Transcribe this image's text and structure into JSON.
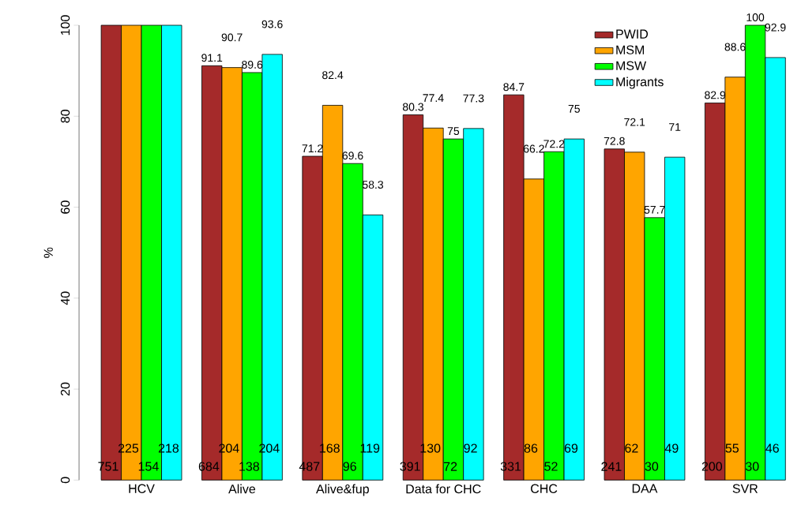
{
  "chart_data": {
    "type": "bar",
    "ylabel": "%",
    "categories": [
      "HCV",
      "Alive",
      "Alive&fup",
      "Data for CHC",
      "CHC",
      "DAA",
      "SVR"
    ],
    "series": [
      {
        "name": "PWID",
        "color": "#a52a2a",
        "values": [
          100,
          91.1,
          71.2,
          80.3,
          84.7,
          72.8,
          82.9
        ],
        "value_labels": [
          null,
          "91.1",
          "71.2",
          "80.3",
          "84.7",
          "72.8",
          "82.9"
        ]
      },
      {
        "name": "MSM",
        "color": "#ffa500",
        "values": [
          100,
          90.7,
          82.4,
          77.4,
          66.2,
          72.1,
          88.6
        ],
        "value_labels": [
          null,
          "90.7",
          "82.4",
          "77.4",
          "66.2",
          "72.1",
          "88.6"
        ]
      },
      {
        "name": "MSW",
        "color": "#00ff00",
        "values": [
          100,
          89.6,
          69.6,
          75,
          72.2,
          57.7,
          100
        ],
        "value_labels": [
          null,
          "89.6",
          "69.6",
          "75",
          "72.2",
          "57.7",
          "100"
        ]
      },
      {
        "name": "Migrants",
        "color": "#00ffff",
        "values": [
          100,
          93.6,
          58.3,
          77.3,
          75,
          71,
          92.9
        ],
        "value_labels": [
          null,
          "93.6",
          "58.3",
          "77.3",
          "75",
          "71",
          "92.9"
        ]
      }
    ],
    "ylim": [
      0,
      100
    ],
    "yticks": [
      0,
      20,
      40,
      60,
      80,
      100
    ],
    "legend": "top right",
    "annotations": [
      {
        "text": "751",
        "x": "HCV",
        "y": 3
      },
      {
        "text": "225",
        "x": "HCV",
        "y": 7
      },
      {
        "text": "154",
        "x": "HCV",
        "y": 3
      },
      {
        "text": "218",
        "x": "HCV",
        "y": 7
      },
      {
        "text": "684",
        "x": "Alive",
        "y": 3
      },
      {
        "text": "204",
        "x": "Alive",
        "y": 7
      },
      {
        "text": "138",
        "x": "Alive",
        "y": 3
      },
      {
        "text": "204",
        "x": "Alive",
        "y": 7
      },
      {
        "text": "487",
        "x": "Alive&fup",
        "y": 3
      },
      {
        "text": "168",
        "x": "Alive&fup",
        "y": 7
      },
      {
        "text": "96",
        "x": "Alive&fup",
        "y": 3
      },
      {
        "text": "119",
        "x": "Alive&fup",
        "y": 7
      },
      {
        "text": "391",
        "x": "Data for CHC",
        "y": 3
      },
      {
        "text": "130",
        "x": "Data for CHC",
        "y": 7
      },
      {
        "text": "72",
        "x": "Data for CHC",
        "y": 3
      },
      {
        "text": "92",
        "x": "Data for CHC",
        "y": 7
      },
      {
        "text": "331",
        "x": "CHC",
        "y": 3
      },
      {
        "text": "86",
        "x": "CHC",
        "y": 7
      },
      {
        "text": "52",
        "x": "CHC",
        "y": 3
      },
      {
        "text": "69",
        "x": "CHC",
        "y": 7
      },
      {
        "text": "241",
        "x": "DAA",
        "y": 3
      },
      {
        "text": "62",
        "x": "DAA",
        "y": 7
      },
      {
        "text": "30",
        "x": "DAA",
        "y": 3
      },
      {
        "text": "49",
        "x": "DAA",
        "y": 7
      },
      {
        "text": "200",
        "x": "SVR",
        "y": 3
      },
      {
        "text": "55",
        "x": "SVR",
        "y": 7
      },
      {
        "text": "30",
        "x": "SVR",
        "y": 3
      },
      {
        "text": "46",
        "x": "SVR",
        "y": 7
      }
    ]
  }
}
